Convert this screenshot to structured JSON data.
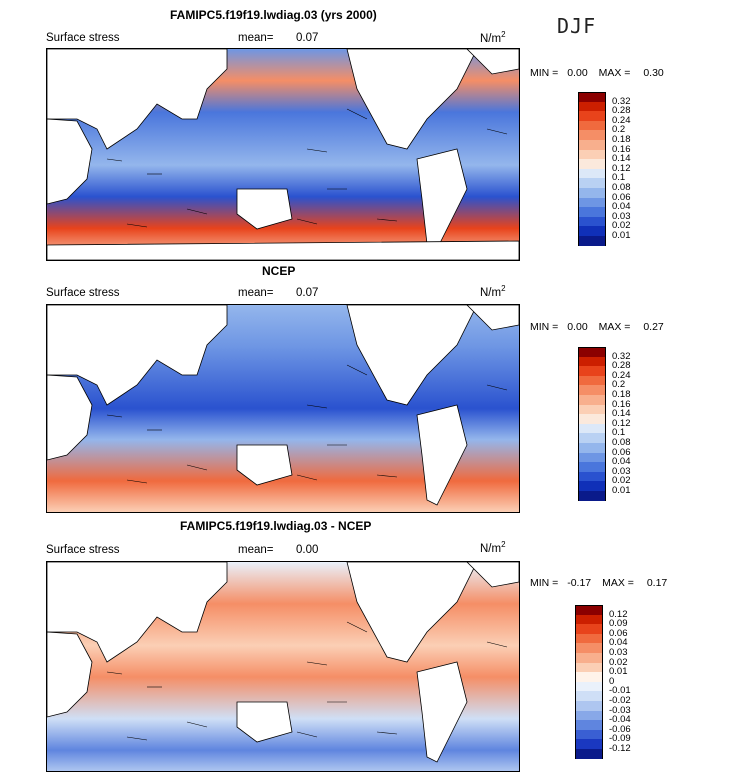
{
  "season": "DJF",
  "panels": [
    {
      "title": "FAMIPC5.f19f19.lwdiag.03 (yrs 2000)",
      "variable": "Surface stress",
      "mean_label": "mean=",
      "mean_value": "0.07",
      "units": "N/m",
      "units_exp": "2",
      "min_label": "MIN =",
      "min_value": "0.00",
      "max_label": "MAX =",
      "max_value": "0.30",
      "colorbar": {
        "levels": [
          "0.32",
          "0.28",
          "0.24",
          "0.2",
          "0.18",
          "0.16",
          "0.14",
          "0.12",
          "0.1",
          "0.08",
          "0.06",
          "0.04",
          "0.03",
          "0.02",
          "0.01"
        ],
        "colors": [
          "#8b0000",
          "#cc1f00",
          "#e8431b",
          "#f06a3e",
          "#f58e66",
          "#f8af8d",
          "#fbcfb5",
          "#fbe9dc",
          "#dce8f8",
          "#b9d1f3",
          "#94b6ec",
          "#6e96e4",
          "#4a76dc",
          "#2a52cf",
          "#1030b8",
          "#0a1a8a"
        ]
      }
    },
    {
      "title": "NCEP",
      "variable": "Surface stress",
      "mean_label": "mean=",
      "mean_value": "0.07",
      "units": "N/m",
      "units_exp": "2",
      "min_label": "MIN =",
      "min_value": "0.00",
      "max_label": "MAX =",
      "max_value": "0.27",
      "colorbar": {
        "levels": [
          "0.32",
          "0.28",
          "0.24",
          "0.2",
          "0.18",
          "0.16",
          "0.14",
          "0.12",
          "0.1",
          "0.08",
          "0.06",
          "0.04",
          "0.03",
          "0.02",
          "0.01"
        ],
        "colors": [
          "#8b0000",
          "#cc1f00",
          "#e8431b",
          "#f06a3e",
          "#f58e66",
          "#f8af8d",
          "#fbcfb5",
          "#fbe9dc",
          "#dce8f8",
          "#b9d1f3",
          "#94b6ec",
          "#6e96e4",
          "#4a76dc",
          "#2a52cf",
          "#1030b8",
          "#0a1a8a"
        ]
      }
    },
    {
      "title": "FAMIPC5.f19f19.lwdiag.03 - NCEP",
      "variable": "Surface stress",
      "mean_label": "mean=",
      "mean_value": "0.00",
      "units": "N/m",
      "units_exp": "2",
      "min_label": "MIN =",
      "min_value": "-0.17",
      "max_label": "MAX =",
      "max_value": "0.17",
      "colorbar": {
        "levels": [
          "0.12",
          "0.09",
          "0.06",
          "0.04",
          "0.03",
          "0.02",
          "0.01",
          "0",
          "-0.01",
          "-0.02",
          "-0.03",
          "-0.04",
          "-0.06",
          "-0.09",
          "-0.12"
        ],
        "colors": [
          "#8b0000",
          "#cc1f00",
          "#e8431b",
          "#f06a3e",
          "#f58e66",
          "#f8af8d",
          "#fbcfb5",
          "#fff3ea",
          "#eaf1fb",
          "#cfdff6",
          "#aec6f0",
          "#88a8e8",
          "#5f85df",
          "#3a5fd3",
          "#1a38c0",
          "#0a1a8a"
        ]
      }
    }
  ],
  "chart_data": [
    {
      "type": "heatmap",
      "title": "FAMIPC5.f19f19.lwdiag.03 (yrs 2000)",
      "variable": "Surface stress",
      "units": "N/m^2",
      "mean": 0.07,
      "min": 0.0,
      "max": 0.3,
      "season": "DJF"
    },
    {
      "type": "heatmap",
      "title": "NCEP",
      "variable": "Surface stress",
      "units": "N/m^2",
      "mean": 0.07,
      "min": 0.0,
      "max": 0.27,
      "season": "DJF"
    },
    {
      "type": "heatmap",
      "title": "FAMIPC5.f19f19.lwdiag.03 - NCEP",
      "variable": "Surface stress",
      "units": "N/m^2",
      "mean": 0.0,
      "min": -0.17,
      "max": 0.17,
      "season": "DJF"
    }
  ]
}
